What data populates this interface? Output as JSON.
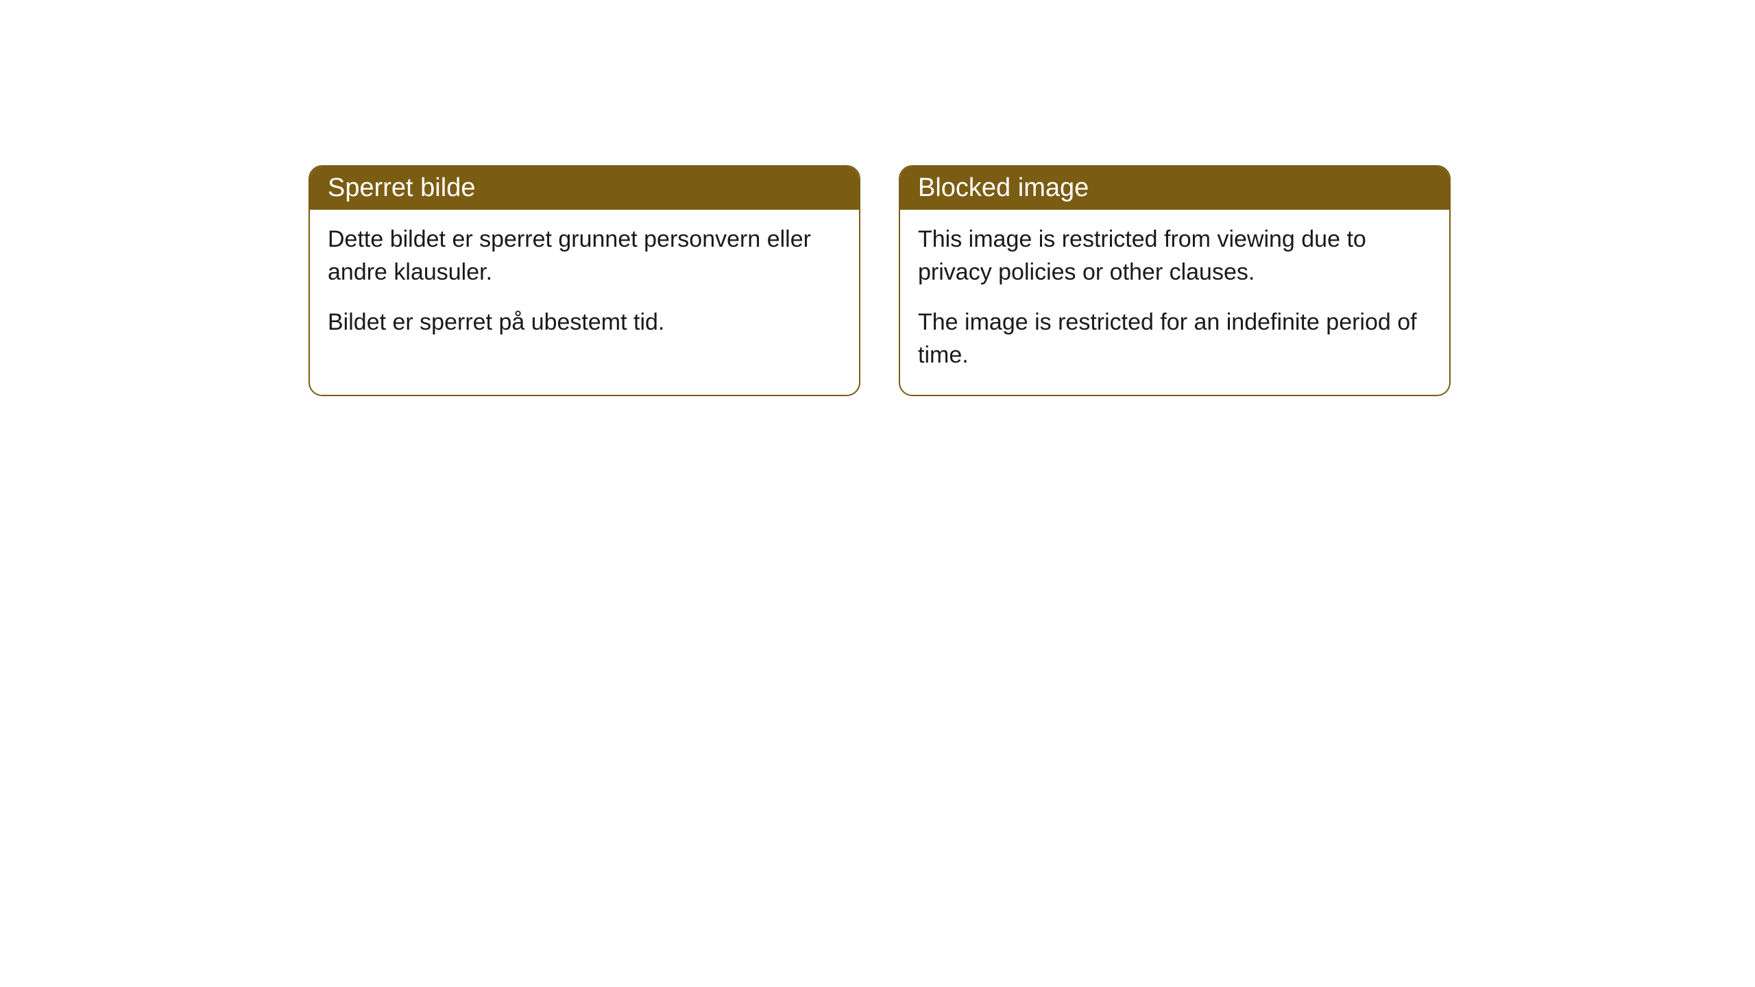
{
  "cards": [
    {
      "title": "Sperret bilde",
      "paragraph1": "Dette bildet er sperret grunnet personvern eller andre klausuler.",
      "paragraph2": "Bildet er sperret på ubestemt tid."
    },
    {
      "title": "Blocked image",
      "paragraph1": "This image is restricted from viewing due to privacy policies or other clauses.",
      "paragraph2": "The image is restricted for an indefinite period of time."
    }
  ],
  "styling": {
    "header_bg_color": "#7a5c13",
    "header_text_color": "#ffffff",
    "border_color": "#7a5c13",
    "body_text_color": "#1a1a1a",
    "card_bg_color": "#ffffff",
    "border_radius": 20,
    "title_fontsize": 38,
    "body_fontsize": 34
  }
}
